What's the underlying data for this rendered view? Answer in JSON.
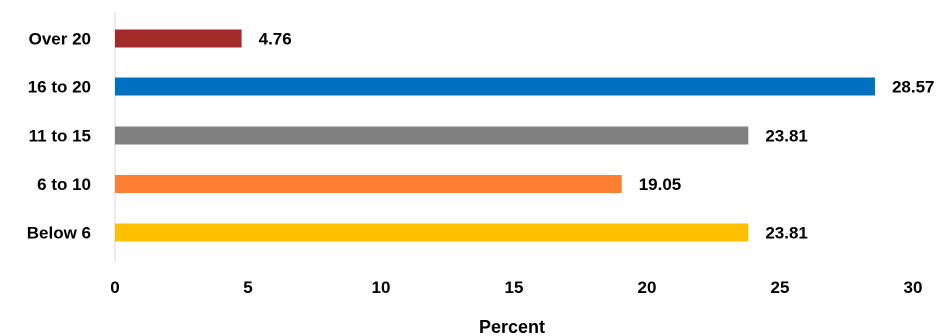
{
  "chart_data": {
    "type": "bar",
    "orientation": "horizontal",
    "categories": [
      "Over 20",
      "16 to 20",
      "11 to 15",
      "6 to 10",
      "Below 6"
    ],
    "values": [
      4.76,
      28.57,
      23.81,
      19.05,
      23.81
    ],
    "value_labels": [
      "4.76",
      "28.57",
      "23.81",
      "19.05",
      "23.81"
    ],
    "colors": [
      "#A52A2A",
      "#0070C0",
      "#808080",
      "#FF7F32",
      "#FFC000"
    ],
    "title": "",
    "xlabel": "Percent",
    "ylabel": "",
    "xlim": [
      0,
      30
    ],
    "xticks": [
      "0",
      "5",
      "10",
      "15",
      "20",
      "25",
      "30"
    ],
    "grid": false,
    "legend": "none"
  }
}
